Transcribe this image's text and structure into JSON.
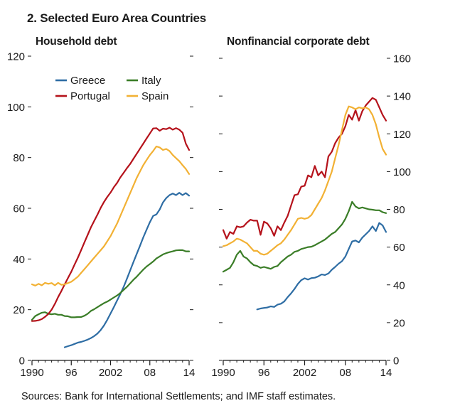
{
  "figure": {
    "title": "2. Selected Euro Area Countries",
    "source_note": "Sources: Bank for International Settlements; and IMF staff estimates."
  },
  "colors": {
    "Greece": "#2e6da4",
    "Portugal": "#b5121b",
    "Italy": "#3a7d27",
    "Spain": "#f2b134",
    "axis": "#1a1a1a"
  },
  "chart_data": [
    {
      "type": "line",
      "title": "Household debt",
      "xlabel": "",
      "ylabel": "",
      "xlim": [
        1990,
        2014
      ],
      "ylim": [
        0,
        120
      ],
      "x_ticks": [
        {
          "value": 1990,
          "label": "1990"
        },
        {
          "value": 1996,
          "label": "96"
        },
        {
          "value": 2002,
          "label": "2002"
        },
        {
          "value": 2008,
          "label": "08"
        },
        {
          "value": 2014,
          "label": "14"
        }
      ],
      "y_ticks": [
        0,
        20,
        40,
        60,
        80,
        100,
        120
      ],
      "y_axis_labels": "left",
      "legend": {
        "placement": "top-left",
        "entries": [
          "Greece",
          "Italy",
          "Portugal",
          "Spain"
        ]
      },
      "series": [
        {
          "name": "Greece",
          "x": [
            1995.0,
            1995.5,
            1996.0,
            1996.5,
            1997.0,
            1997.5,
            1998.0,
            1998.5,
            1999.0,
            1999.5,
            2000.0,
            2000.5,
            2001.0,
            2001.5,
            2002.0,
            2002.5,
            2003.0,
            2003.5,
            2004.0,
            2004.5,
            2005.0,
            2005.5,
            2006.0,
            2006.5,
            2007.0,
            2007.5,
            2008.0,
            2008.5,
            2009.0,
            2009.5,
            2010.0,
            2010.5,
            2011.0,
            2011.5,
            2012.0,
            2012.5,
            2013.0,
            2013.5,
            2014.0
          ],
          "values": [
            5.2,
            5.6,
            6.0,
            6.5,
            7.0,
            7.3,
            7.7,
            8.2,
            8.8,
            9.6,
            10.6,
            12.0,
            13.8,
            16.0,
            18.5,
            21.0,
            23.6,
            26.2,
            29.0,
            32.2,
            35.5,
            38.8,
            42.0,
            45.2,
            48.5,
            51.5,
            54.5,
            57.0,
            57.6,
            59.5,
            62.3,
            64.0,
            65.2,
            65.8,
            65.2,
            66.1,
            65.2,
            66.0,
            65.0
          ]
        },
        {
          "name": "Italy",
          "x": [
            1990.0,
            1990.5,
            1991.0,
            1991.5,
            1992.0,
            1992.5,
            1993.0,
            1993.5,
            1994.0,
            1994.5,
            1995.0,
            1995.5,
            1996.0,
            1996.5,
            1997.0,
            1997.5,
            1998.0,
            1998.5,
            1999.0,
            1999.5,
            2000.0,
            2000.5,
            2001.0,
            2001.5,
            2002.0,
            2002.5,
            2003.0,
            2003.5,
            2004.0,
            2004.5,
            2005.0,
            2005.5,
            2006.0,
            2006.5,
            2007.0,
            2007.5,
            2008.0,
            2008.5,
            2009.0,
            2009.5,
            2010.0,
            2010.5,
            2011.0,
            2011.5,
            2012.0,
            2012.5,
            2013.0,
            2013.5,
            2014.0
          ],
          "values": [
            16.0,
            17.5,
            18.2,
            18.8,
            19.0,
            18.4,
            18.2,
            18.4,
            18.0,
            18.0,
            17.5,
            17.4,
            17.0,
            17.0,
            17.1,
            17.1,
            17.6,
            18.4,
            19.5,
            20.2,
            21.0,
            21.8,
            22.6,
            23.2,
            24.0,
            24.8,
            25.6,
            26.6,
            27.8,
            29.0,
            30.4,
            31.8,
            33.0,
            34.4,
            35.8,
            37.0,
            38.0,
            39.0,
            40.2,
            41.0,
            41.8,
            42.3,
            42.7,
            43.0,
            43.4,
            43.5,
            43.5,
            43.0,
            43.0
          ]
        },
        {
          "name": "Portugal",
          "x": [
            1990.0,
            1990.5,
            1991.0,
            1991.5,
            1992.0,
            1992.5,
            1993.0,
            1993.5,
            1994.0,
            1994.5,
            1995.0,
            1995.5,
            1996.0,
            1996.5,
            1997.0,
            1997.5,
            1998.0,
            1998.5,
            1999.0,
            1999.5,
            2000.0,
            2000.5,
            2001.0,
            2001.5,
            2002.0,
            2002.5,
            2003.0,
            2003.5,
            2004.0,
            2004.5,
            2005.0,
            2005.5,
            2006.0,
            2006.5,
            2007.0,
            2007.5,
            2008.0,
            2008.5,
            2009.0,
            2009.5,
            2010.0,
            2010.5,
            2011.0,
            2011.5,
            2012.0,
            2012.5,
            2013.0,
            2013.5,
            2014.0
          ],
          "values": [
            15.5,
            15.6,
            15.8,
            16.3,
            17.2,
            18.3,
            20.0,
            22.3,
            25.0,
            27.4,
            30.0,
            32.5,
            35.0,
            37.8,
            40.5,
            43.5,
            46.5,
            49.5,
            52.5,
            55.0,
            57.5,
            60.2,
            62.5,
            64.5,
            66.2,
            68.3,
            70.0,
            72.2,
            74.0,
            75.8,
            77.5,
            79.5,
            81.5,
            83.5,
            85.5,
            87.5,
            89.5,
            91.5,
            91.6,
            90.6,
            91.4,
            91.2,
            91.8,
            91.0,
            91.6,
            91.0,
            89.8,
            85.5,
            83.0
          ]
        },
        {
          "name": "Spain",
          "x": [
            1990.0,
            1990.5,
            1991.0,
            1991.5,
            1992.0,
            1992.5,
            1993.0,
            1993.5,
            1994.0,
            1994.5,
            1995.0,
            1995.5,
            1996.0,
            1996.5,
            1997.0,
            1997.5,
            1998.0,
            1998.5,
            1999.0,
            1999.5,
            2000.0,
            2000.5,
            2001.0,
            2001.5,
            2002.0,
            2002.5,
            2003.0,
            2003.5,
            2004.0,
            2004.5,
            2005.0,
            2005.5,
            2006.0,
            2006.5,
            2007.0,
            2007.5,
            2008.0,
            2008.5,
            2009.0,
            2009.5,
            2010.0,
            2010.5,
            2011.0,
            2011.5,
            2012.0,
            2012.5,
            2013.0,
            2013.5,
            2014.0
          ],
          "values": [
            30.0,
            29.5,
            30.2,
            29.6,
            30.6,
            30.2,
            30.5,
            29.6,
            30.6,
            29.8,
            30.0,
            30.5,
            31.0,
            32.0,
            33.0,
            34.5,
            36.0,
            37.5,
            39.0,
            40.5,
            42.0,
            43.5,
            45.0,
            47.0,
            49.0,
            51.5,
            54.0,
            57.0,
            60.0,
            63.0,
            66.0,
            69.0,
            72.0,
            74.5,
            77.0,
            79.0,
            81.0,
            82.6,
            84.4,
            84.0,
            83.0,
            83.4,
            82.6,
            81.0,
            79.8,
            78.6,
            77.0,
            75.5,
            73.5
          ]
        }
      ]
    },
    {
      "type": "line",
      "title": "Nonfinancial corporate debt",
      "xlabel": "",
      "ylabel": "",
      "xlim": [
        1990,
        2014
      ],
      "ylim": [
        0,
        160
      ],
      "x_ticks": [
        {
          "value": 1990,
          "label": "1990"
        },
        {
          "value": 1996,
          "label": "96"
        },
        {
          "value": 2002,
          "label": "2002"
        },
        {
          "value": 2008,
          "label": "08"
        },
        {
          "value": 2014,
          "label": "14"
        }
      ],
      "y_ticks": [
        0,
        20,
        40,
        60,
        80,
        100,
        120,
        140,
        160
      ],
      "y_axis_labels": "right",
      "series": [
        {
          "name": "Greece",
          "x": [
            1995.0,
            1995.5,
            1996.0,
            1996.5,
            1997.0,
            1997.5,
            1998.0,
            1998.5,
            1999.0,
            1999.5,
            2000.0,
            2000.5,
            2001.0,
            2001.5,
            2002.0,
            2002.5,
            2003.0,
            2003.5,
            2004.0,
            2004.5,
            2005.0,
            2005.5,
            2006.0,
            2006.5,
            2007.0,
            2007.5,
            2008.0,
            2008.5,
            2009.0,
            2009.5,
            2010.0,
            2010.5,
            2011.0,
            2011.5,
            2012.0,
            2012.5,
            2013.0,
            2013.5,
            2014.0
          ],
          "values": [
            27.0,
            27.5,
            27.8,
            28.0,
            28.6,
            28.3,
            29.5,
            30.0,
            31.2,
            33.5,
            35.5,
            37.8,
            40.5,
            42.5,
            43.5,
            42.8,
            43.6,
            43.8,
            44.5,
            45.5,
            45.2,
            46.0,
            48.0,
            49.5,
            51.2,
            52.5,
            55.0,
            59.0,
            63.0,
            63.5,
            62.5,
            65.0,
            66.8,
            68.5,
            71.0,
            68.5,
            72.8,
            71.5,
            68.0
          ]
        },
        {
          "name": "Italy",
          "x": [
            1990.0,
            1990.5,
            1991.0,
            1991.5,
            1992.0,
            1992.5,
            1993.0,
            1993.5,
            1994.0,
            1994.5,
            1995.0,
            1995.5,
            1996.0,
            1996.5,
            1997.0,
            1997.5,
            1998.0,
            1998.5,
            1999.0,
            1999.5,
            2000.0,
            2000.5,
            2001.0,
            2001.5,
            2002.0,
            2002.5,
            2003.0,
            2003.5,
            2004.0,
            2004.5,
            2005.0,
            2005.5,
            2006.0,
            2006.5,
            2007.0,
            2007.5,
            2008.0,
            2008.5,
            2009.0,
            2009.5,
            2010.0,
            2010.5,
            2011.0,
            2011.5,
            2012.0,
            2012.5,
            2013.0,
            2013.5,
            2014.0
          ],
          "values": [
            47.0,
            48.0,
            49.0,
            52.0,
            56.0,
            58.0,
            55.0,
            54.0,
            52.0,
            50.5,
            50.0,
            49.0,
            49.5,
            49.0,
            48.5,
            49.5,
            50.0,
            52.0,
            53.5,
            55.0,
            56.0,
            57.5,
            58.0,
            59.0,
            59.5,
            60.0,
            60.2,
            61.0,
            62.0,
            63.0,
            64.0,
            65.5,
            67.0,
            68.0,
            70.0,
            72.0,
            75.0,
            79.0,
            84.0,
            81.5,
            80.5,
            81.0,
            80.5,
            80.0,
            79.8,
            79.5,
            79.5,
            78.5,
            78.0
          ]
        },
        {
          "name": "Portugal",
          "x": [
            1990.0,
            1990.5,
            1991.0,
            1991.5,
            1992.0,
            1992.5,
            1993.0,
            1993.5,
            1994.0,
            1994.5,
            1995.0,
            1995.5,
            1996.0,
            1996.5,
            1997.0,
            1997.5,
            1998.0,
            1998.5,
            1999.0,
            1999.5,
            2000.0,
            2000.5,
            2001.0,
            2001.5,
            2002.0,
            2002.5,
            2003.0,
            2003.5,
            2004.0,
            2004.5,
            2005.0,
            2005.5,
            2006.0,
            2006.5,
            2007.0,
            2007.5,
            2008.0,
            2008.5,
            2009.0,
            2009.5,
            2010.0,
            2010.5,
            2011.0,
            2011.5,
            2012.0,
            2012.5,
            2013.0,
            2013.5,
            2014.0
          ],
          "values": [
            69.0,
            64.5,
            68.0,
            67.0,
            71.0,
            70.5,
            71.0,
            73.0,
            74.5,
            74.0,
            74.0,
            66.5,
            73.5,
            72.5,
            70.0,
            66.0,
            71.0,
            69.0,
            73.0,
            76.5,
            82.0,
            87.5,
            88.0,
            92.0,
            92.5,
            98.0,
            97.0,
            103.0,
            98.0,
            100.0,
            97.0,
            108.0,
            110.5,
            115.0,
            118.0,
            120.0,
            124.0,
            130.0,
            127.5,
            132.5,
            127.0,
            132.0,
            135.0,
            137.0,
            139.0,
            138.0,
            134.0,
            130.0,
            127.0
          ]
        },
        {
          "name": "Spain",
          "x": [
            1990.0,
            1990.5,
            1991.0,
            1991.5,
            1992.0,
            1992.5,
            1993.0,
            1993.5,
            1994.0,
            1994.5,
            1995.0,
            1995.5,
            1996.0,
            1996.5,
            1997.0,
            1997.5,
            1998.0,
            1998.5,
            1999.0,
            1999.5,
            2000.0,
            2000.5,
            2001.0,
            2001.5,
            2002.0,
            2002.5,
            2003.0,
            2003.5,
            2004.0,
            2004.5,
            2005.0,
            2005.5,
            2006.0,
            2006.5,
            2007.0,
            2007.5,
            2008.0,
            2008.5,
            2009.0,
            2009.5,
            2010.0,
            2010.5,
            2011.0,
            2011.5,
            2012.0,
            2012.5,
            2013.0,
            2013.5,
            2014.0
          ],
          "values": [
            60.5,
            61.0,
            62.0,
            63.0,
            64.5,
            64.0,
            63.0,
            62.0,
            60.0,
            58.0,
            58.0,
            56.5,
            56.0,
            56.5,
            58.0,
            59.5,
            61.0,
            62.0,
            64.0,
            66.5,
            69.0,
            72.0,
            75.0,
            75.5,
            75.0,
            75.5,
            77.0,
            80.0,
            83.0,
            86.0,
            90.0,
            95.0,
            100.0,
            107.0,
            114.0,
            122.0,
            130.0,
            134.5,
            134.0,
            133.0,
            134.0,
            133.5,
            134.0,
            133.0,
            130.0,
            125.0,
            118.0,
            112.0,
            109.0
          ]
        }
      ]
    }
  ]
}
